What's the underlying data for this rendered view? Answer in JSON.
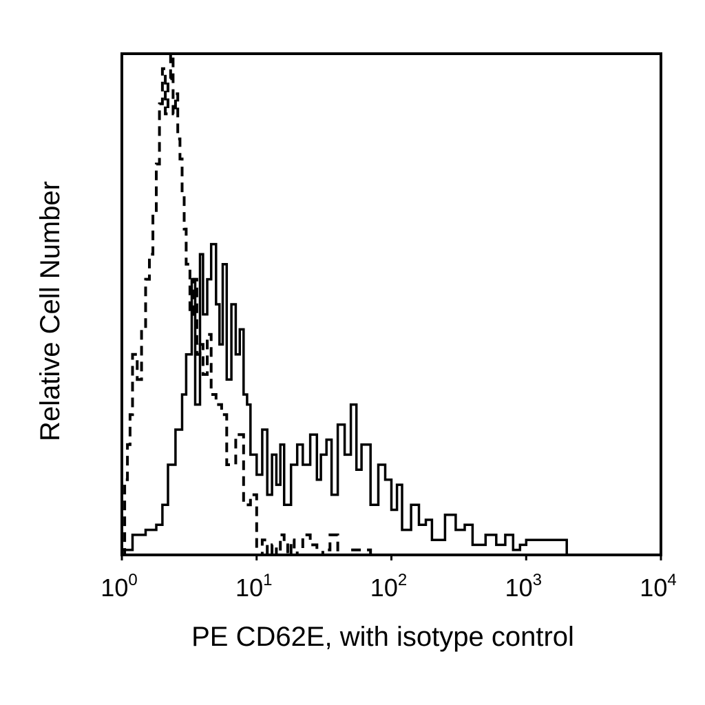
{
  "chart_data": {
    "type": "line",
    "title": "",
    "xlabel": "PE CD62E, with isotype control",
    "ylabel": "Relative Cell Number",
    "x_scale": "log",
    "xlim": [
      1,
      10000
    ],
    "ylim": [
      0,
      100
    ],
    "grid": false,
    "legend": "none",
    "x_ticks": [
      {
        "base": "10",
        "exp": "0"
      },
      {
        "base": "10",
        "exp": "1"
      },
      {
        "base": "10",
        "exp": "2"
      },
      {
        "base": "10",
        "exp": "3"
      },
      {
        "base": "10",
        "exp": "4"
      }
    ],
    "series": [
      {
        "style": "dashed",
        "color": "#000000",
        "x": [
          1.0,
          1.05,
          1.1,
          1.15,
          1.2,
          1.3,
          1.4,
          1.5,
          1.6,
          1.7,
          1.8,
          1.9,
          2.0,
          2.1,
          2.2,
          2.3,
          2.4,
          2.5,
          2.6,
          2.7,
          2.8,
          2.9,
          3.0,
          3.2,
          3.4,
          3.6,
          3.8,
          4.0,
          4.3,
          4.6,
          5.0,
          5.5,
          6.0,
          7.0,
          8.0,
          9.0,
          10.0,
          11.0,
          12.0,
          13.0,
          14.0,
          15.0,
          16.0,
          17.0,
          18.0,
          19.0,
          20.0,
          22.0,
          25.0,
          28.0,
          31.0,
          35.0,
          40.0,
          50.0,
          70.0,
          100.0,
          200.0,
          1000.0,
          10000.0
        ],
        "values": [
          0,
          15,
          22,
          28,
          40,
          35,
          45,
          55,
          60,
          68,
          78,
          90,
          97,
          88,
          95,
          100,
          88,
          92,
          83,
          79,
          72,
          65,
          58,
          48,
          55,
          40,
          42,
          36,
          44,
          32,
          30,
          28,
          18,
          24,
          10,
          12,
          0,
          3,
          0,
          2,
          0,
          4,
          2,
          0,
          3,
          1,
          0,
          4,
          2,
          0,
          1,
          4,
          0,
          1,
          0,
          0,
          0,
          0,
          0
        ]
      },
      {
        "style": "solid",
        "color": "#000000",
        "x": [
          1.0,
          1.2,
          1.5,
          1.8,
          2.0,
          2.2,
          2.5,
          2.8,
          3.0,
          3.3,
          3.5,
          3.8,
          4.0,
          4.3,
          4.6,
          5.0,
          5.3,
          5.6,
          6.0,
          6.5,
          7.0,
          7.5,
          8.0,
          8.5,
          9.0,
          10.0,
          11.0,
          12.0,
          13.0,
          14.0,
          15.0,
          16.0,
          18.0,
          20.0,
          22.0,
          25.0,
          28.0,
          30.0,
          33.0,
          36.0,
          40.0,
          45.0,
          50.0,
          55.0,
          60.0,
          70.0,
          80.0,
          90.0,
          100.0,
          110.0,
          120.0,
          140.0,
          160.0,
          180.0,
          200.0,
          250.0,
          300.0,
          350.0,
          400.0,
          500.0,
          600.0,
          700.0,
          800.0,
          900.0,
          1000.0,
          2000.0,
          10000.0
        ],
        "values": [
          1,
          4,
          5,
          6,
          10,
          18,
          25,
          32,
          40,
          55,
          30,
          60,
          48,
          55,
          62,
          50,
          42,
          58,
          35,
          50,
          40,
          45,
          32,
          30,
          20,
          16,
          25,
          12,
          20,
          14,
          22,
          10,
          18,
          22,
          18,
          24,
          15,
          20,
          23,
          12,
          26,
          20,
          30,
          17,
          22,
          10,
          18,
          15,
          9,
          14,
          5,
          10,
          6,
          7,
          3,
          8,
          5,
          6,
          2,
          4,
          2,
          4,
          1,
          2,
          3,
          0,
          0
        ]
      }
    ]
  }
}
